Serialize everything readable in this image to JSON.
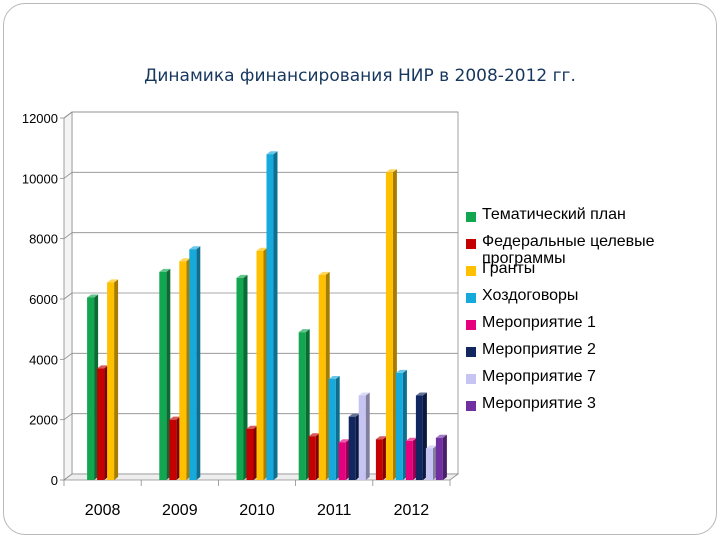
{
  "chart_data": {
    "type": "bar",
    "title": "Динамика финансирования НИР в 2008-2012 гг.",
    "xlabel": "",
    "ylabel": "",
    "categories": [
      "2008",
      "2009",
      "2010",
      "2011",
      "2012"
    ],
    "ylim": [
      0,
      12000
    ],
    "yticks": [
      "0",
      "2000",
      "4000",
      "6000",
      "8000",
      "10000",
      "12000"
    ],
    "legend_position": "right",
    "series": [
      {
        "name": "Тематический план",
        "color": "#11a64f",
        "values": [
          6050,
          6900,
          6700,
          4900,
          null
        ]
      },
      {
        "name": "Федеральные целевые программы",
        "color": "#c40000",
        "values": [
          3700,
          2000,
          1700,
          1450,
          1350
        ]
      },
      {
        "name": "Гранты",
        "color": "#ffc000",
        "values": [
          6550,
          7250,
          7600,
          6800,
          10200
        ]
      },
      {
        "name": "Хоздоговоры",
        "color": "#16a9dc",
        "values": [
          null,
          7650,
          10800,
          3350,
          3550
        ]
      },
      {
        "name": "Мероприятие 1",
        "color": "#e6007e",
        "values": [
          null,
          null,
          null,
          1250,
          1300
        ]
      },
      {
        "name": "Мероприятие 2",
        "color": "#12275f",
        "values": [
          null,
          null,
          null,
          2100,
          2800
        ]
      },
      {
        "name": "Мероприятие 7",
        "color": "#c6c4f2",
        "values": [
          null,
          null,
          null,
          2800,
          1050
        ]
      },
      {
        "name": "Мероприятие 3",
        "color": "#7030a0",
        "values": [
          null,
          null,
          null,
          null,
          1400
        ]
      }
    ]
  }
}
